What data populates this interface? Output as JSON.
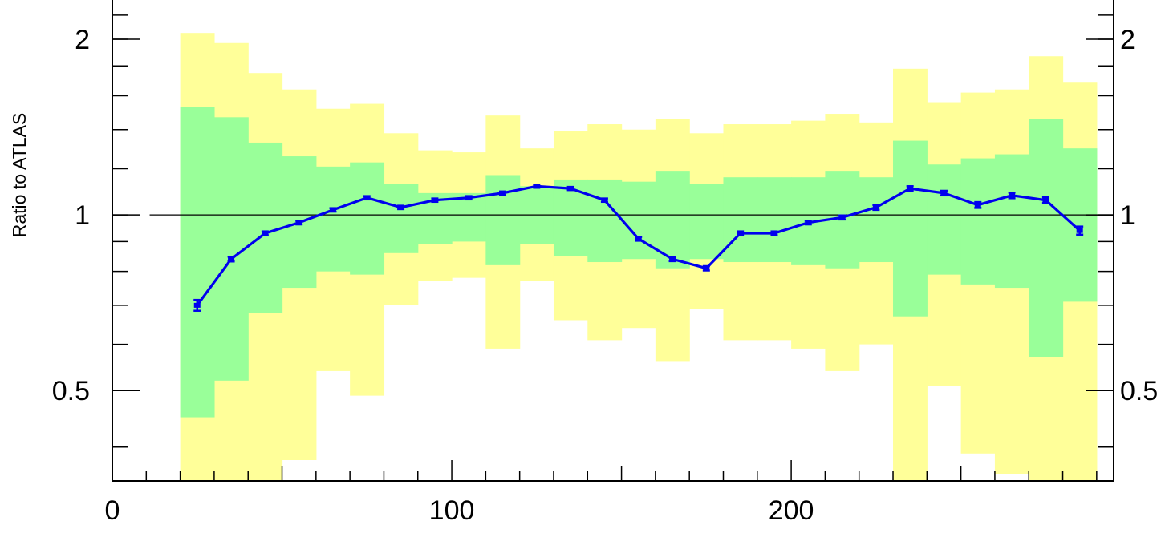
{
  "chart_data": {
    "type": "line",
    "title": "",
    "xlabel": "",
    "ylabel": "Ratio to ATLAS",
    "xlim": [
      0,
      295
    ],
    "ylim": [
      0.35,
      2.35
    ],
    "y_scale": "log",
    "x_ticks": [
      0,
      100,
      200
    ],
    "x_tick_labels": [
      "0",
      "100",
      "200"
    ],
    "y_ticks": [
      0.5,
      1,
      2
    ],
    "y_tick_labels_left": [
      "0.5",
      "1",
      "2"
    ],
    "y_tick_labels_right": [
      "0.5",
      "1",
      "2"
    ],
    "reference_line": 1,
    "bins": [
      [
        20,
        30
      ],
      [
        30,
        40
      ],
      [
        40,
        50
      ],
      [
        50,
        60
      ],
      [
        60,
        70
      ],
      [
        70,
        80
      ],
      [
        80,
        90
      ],
      [
        90,
        100
      ],
      [
        100,
        110
      ],
      [
        110,
        120
      ],
      [
        120,
        130
      ],
      [
        130,
        140
      ],
      [
        140,
        150
      ],
      [
        150,
        160
      ],
      [
        160,
        170
      ],
      [
        170,
        180
      ],
      [
        180,
        190
      ],
      [
        190,
        200
      ],
      [
        200,
        210
      ],
      [
        210,
        220
      ],
      [
        220,
        230
      ],
      [
        230,
        240
      ],
      [
        240,
        250
      ],
      [
        250,
        260
      ],
      [
        260,
        270
      ],
      [
        270,
        280
      ],
      [
        280,
        290
      ]
    ],
    "band_1sigma": {
      "color": "#99ff99",
      "low": [
        0.45,
        0.52,
        0.68,
        0.75,
        0.8,
        0.79,
        0.86,
        0.89,
        0.9,
        0.82,
        0.89,
        0.85,
        0.83,
        0.84,
        0.81,
        0.84,
        0.83,
        0.83,
        0.82,
        0.81,
        0.83,
        0.67,
        0.79,
        0.76,
        0.75,
        0.57,
        0.71
      ],
      "high": [
        1.53,
        1.47,
        1.33,
        1.26,
        1.21,
        1.23,
        1.13,
        1.09,
        1.09,
        1.17,
        1.12,
        1.15,
        1.15,
        1.14,
        1.19,
        1.13,
        1.16,
        1.16,
        1.16,
        1.19,
        1.16,
        1.34,
        1.22,
        1.25,
        1.27,
        1.46,
        1.3
      ]
    },
    "band_2sigma": {
      "color": "#ffff99",
      "low": [
        0.34,
        0.34,
        0.34,
        0.38,
        0.54,
        0.49,
        0.7,
        0.77,
        0.78,
        0.59,
        0.77,
        0.66,
        0.61,
        0.64,
        0.56,
        0.69,
        0.61,
        0.61,
        0.59,
        0.54,
        0.6,
        0.34,
        0.51,
        0.39,
        0.36,
        0.34,
        0.34
      ],
      "high": [
        2.05,
        1.97,
        1.75,
        1.64,
        1.52,
        1.55,
        1.38,
        1.29,
        1.28,
        1.48,
        1.3,
        1.39,
        1.43,
        1.4,
        1.46,
        1.38,
        1.43,
        1.43,
        1.45,
        1.49,
        1.44,
        1.78,
        1.56,
        1.62,
        1.64,
        1.87,
        1.69
      ]
    },
    "series": [
      {
        "color": "#0000ee",
        "x": [
          25,
          35,
          45,
          55,
          65,
          75,
          85,
          95,
          105,
          115,
          125,
          135,
          145,
          155,
          165,
          175,
          185,
          195,
          205,
          215,
          225,
          235,
          245,
          255,
          265,
          275,
          285
        ],
        "y": [
          0.7,
          0.84,
          0.93,
          0.97,
          1.02,
          1.07,
          1.03,
          1.06,
          1.07,
          1.09,
          1.12,
          1.11,
          1.06,
          0.91,
          0.84,
          0.81,
          0.93,
          0.93,
          0.97,
          0.99,
          1.03,
          1.11,
          1.09,
          1.04,
          1.08,
          1.06,
          0.94
        ],
        "yerr": [
          0.015,
          0.008,
          0.007,
          0.007,
          0.007,
          0.007,
          0.007,
          0.007,
          0.007,
          0.007,
          0.007,
          0.007,
          0.007,
          0.007,
          0.007,
          0.007,
          0.007,
          0.007,
          0.007,
          0.008,
          0.01,
          0.01,
          0.01,
          0.012,
          0.012,
          0.012,
          0.015
        ]
      }
    ],
    "grid": false,
    "legend": "none"
  }
}
